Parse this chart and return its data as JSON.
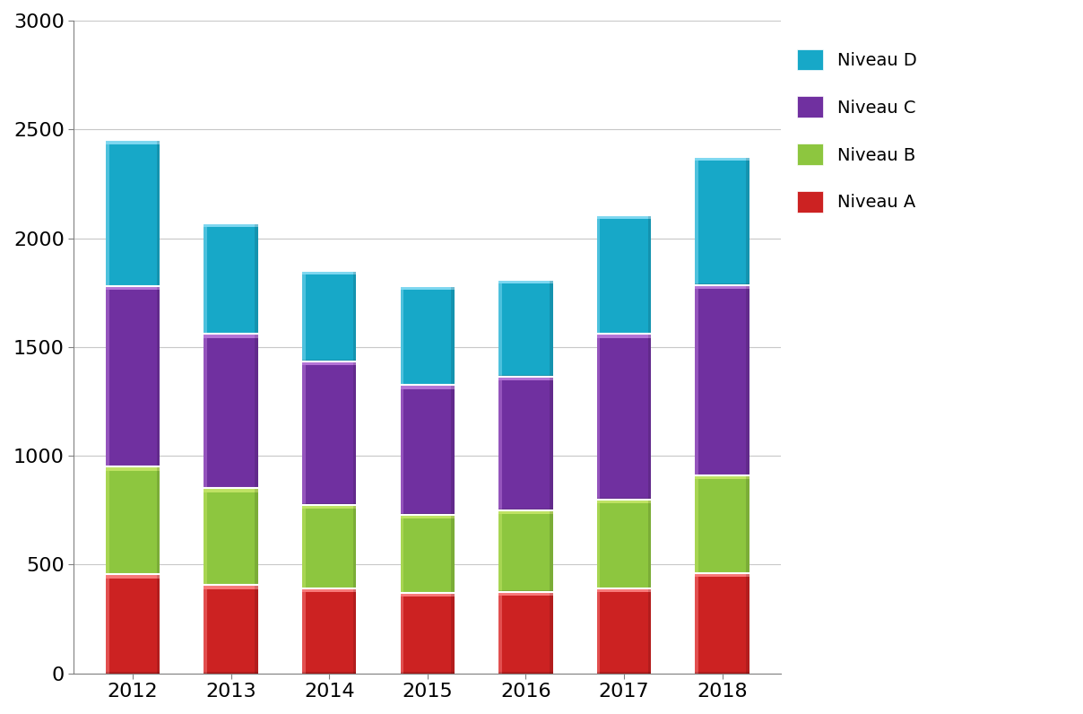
{
  "years": [
    "2012",
    "2013",
    "2014",
    "2015",
    "2016",
    "2017",
    "2018"
  ],
  "niveau_A": [
    455,
    405,
    390,
    370,
    375,
    390,
    460
  ],
  "niveau_B": [
    495,
    445,
    385,
    360,
    375,
    410,
    450
  ],
  "niveau_C": [
    830,
    710,
    660,
    595,
    615,
    760,
    875
  ],
  "niveau_D": [
    670,
    510,
    415,
    455,
    445,
    545,
    590
  ],
  "color_A": "#cc2222",
  "color_B": "#8dc63f",
  "color_C": "#7030a0",
  "color_D": "#17a8c8",
  "color_A_light": "#ff8888",
  "color_B_light": "#c8e86a",
  "color_C_light": "#c080e0",
  "color_D_light": "#90e0f8",
  "ylim": [
    0,
    3000
  ],
  "yticks": [
    0,
    500,
    1000,
    1500,
    2000,
    2500,
    3000
  ],
  "bar_width": 0.55,
  "background_color": "#ffffff",
  "grid_color": "#c8c8c8",
  "tick_fontsize": 16,
  "legend_fontsize": 14
}
